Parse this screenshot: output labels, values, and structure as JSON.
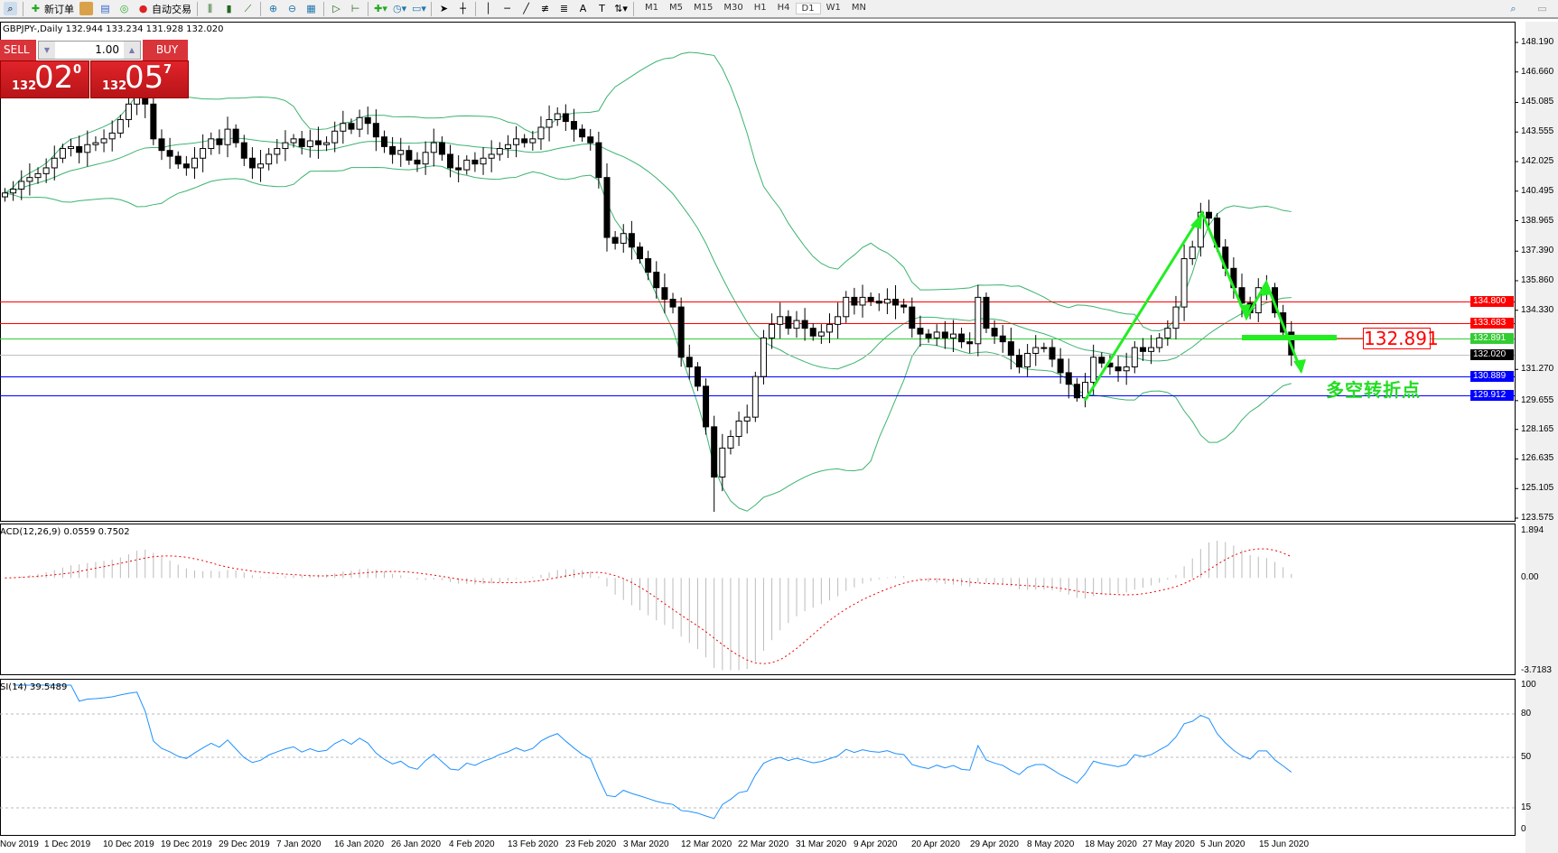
{
  "toolbar": {
    "new_order": "新订单",
    "auto_trading": "自动交易",
    "timeframes": [
      "M1",
      "M5",
      "M15",
      "M30",
      "H1",
      "H4",
      "D1",
      "W1",
      "MN"
    ],
    "active_timeframe": "D1"
  },
  "chart": {
    "header": "GBPJPY-,Daily  132.944 133.234 131.928 132.020",
    "symbol": "GBPJPY-",
    "period": "Daily"
  },
  "trade_panel": {
    "sell_label": "SELL",
    "buy_label": "BUY",
    "lot": "1.00",
    "sell_price": {
      "prefix": "132",
      "big": "02",
      "sup": "0"
    },
    "buy_price": {
      "prefix": "132",
      "big": "05",
      "sup": "7"
    }
  },
  "price_axis": {
    "ticks": [
      "148.190",
      "146.660",
      "145.085",
      "143.555",
      "142.025",
      "140.495",
      "138.965",
      "137.390",
      "135.860",
      "134.330",
      "131.270",
      "129.655",
      "128.165",
      "126.635",
      "125.105",
      "123.575"
    ]
  },
  "levels": [
    {
      "price": "134.800",
      "color": "#ff0000"
    },
    {
      "price": "133.683",
      "color": "#ff0000"
    },
    {
      "price": "132.891",
      "color": "#33cc33"
    },
    {
      "price": "132.020",
      "color": "#000000"
    },
    {
      "price": "130.889",
      "color": "#0000ff"
    },
    {
      "price": "129.912",
      "color": "#0000ff"
    }
  ],
  "annotation": {
    "price_box": "132.891",
    "text": "多空转折点",
    "color": "#22dd22"
  },
  "macd": {
    "label": "ACD(12,26,9) 0.0559 0.7502",
    "ticks": [
      "1.894",
      "0.00",
      "-3.7183"
    ]
  },
  "rsi": {
    "label": "SI(14) 39.5489",
    "ticks": [
      "100",
      "80",
      "50",
      "15",
      "0"
    ]
  },
  "dates": [
    "Nov 2019",
    "1 Dec 2019",
    "10 Dec 2019",
    "19 Dec 2019",
    "29 Dec 2019",
    "7 Jan 2020",
    "16 Jan 2020",
    "26 Jan 2020",
    "4 Feb 2020",
    "13 Feb 2020",
    "23 Feb 2020",
    "3 Mar 2020",
    "12 Mar 2020",
    "22 Mar 2020",
    "31 Mar 2020",
    "9 Apr 2020",
    "20 Apr 2020",
    "29 Apr 2020",
    "8 May 2020",
    "18 May 2020",
    "27 May 2020",
    "5 Jun 2020",
    "15 Jun 2020"
  ],
  "chart_data": {
    "type": "candlestick",
    "series": "GBPJPY daily closes (approx.)",
    "ylim": [
      123.575,
      148.19
    ],
    "closes": [
      140.4,
      140.6,
      141.0,
      141.2,
      141.4,
      141.7,
      142.2,
      142.7,
      142.8,
      142.5,
      142.9,
      143.0,
      143.2,
      143.5,
      144.2,
      145.0,
      145.8,
      145.0,
      143.2,
      142.6,
      142.3,
      141.9,
      141.7,
      142.2,
      142.7,
      143.2,
      142.9,
      143.7,
      143.0,
      142.2,
      141.7,
      141.9,
      142.4,
      142.7,
      143.0,
      143.2,
      142.8,
      143.1,
      142.9,
      143.0,
      143.6,
      144.0,
      143.7,
      144.3,
      144.0,
      143.3,
      142.8,
      142.4,
      142.6,
      142.1,
      141.9,
      142.5,
      143.0,
      142.4,
      141.7,
      141.6,
      142.1,
      141.9,
      142.2,
      142.4,
      142.7,
      142.9,
      143.2,
      143.0,
      143.2,
      143.8,
      144.2,
      144.5,
      144.1,
      143.7,
      143.3,
      143.0,
      141.2,
      138.1,
      137.8,
      138.3,
      137.6,
      137.0,
      136.3,
      135.5,
      134.9,
      134.5,
      131.9,
      131.4,
      130.4,
      128.3,
      125.7,
      127.2,
      127.8,
      128.6,
      128.8,
      130.9,
      132.9,
      133.6,
      134.0,
      133.4,
      133.8,
      133.4,
      133.0,
      133.2,
      133.6,
      134.0,
      135.0,
      134.6,
      135.0,
      134.8,
      134.7,
      134.9,
      134.6,
      134.5,
      133.4,
      133.1,
      132.9,
      133.2,
      132.9,
      133.1,
      132.7,
      132.6,
      135.0,
      133.4,
      133.0,
      132.7,
      132.0,
      131.4,
      132.1,
      132.4,
      132.4,
      131.8,
      131.1,
      130.5,
      129.8,
      130.6,
      131.9,
      131.6,
      131.4,
      131.2,
      131.4,
      132.4,
      132.2,
      132.4,
      132.9,
      133.4,
      134.5,
      137.0,
      137.6,
      139.4,
      139.1,
      137.6,
      136.5,
      135.5,
      134.7,
      134.2,
      135.5,
      135.5,
      134.2,
      133.2,
      132.02
    ]
  }
}
